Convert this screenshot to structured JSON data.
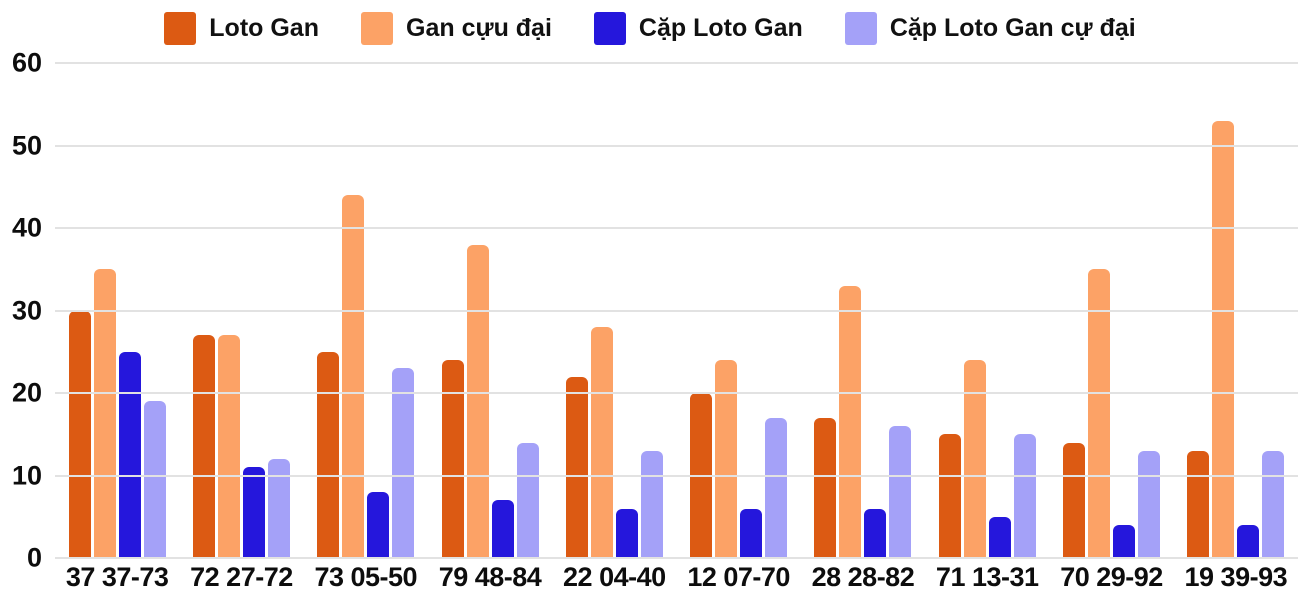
{
  "chart_data": {
    "type": "bar",
    "title": "",
    "xlabel": "",
    "ylabel": "",
    "categories": [
      "37 37-73",
      "72 27-72",
      "73 05-50",
      "79 48-84",
      "22 04-40",
      "12 07-70",
      "28 28-82",
      "71 13-31",
      "70 29-92",
      "19 39-93"
    ],
    "series": [
      {
        "name": "Loto Gan",
        "color": "#dc5a13",
        "values": [
          30,
          27,
          25,
          24,
          22,
          20,
          17,
          15,
          14,
          13
        ]
      },
      {
        "name": "Gan cựu đại",
        "color": "#fca266",
        "values": [
          35,
          27,
          44,
          38,
          28,
          24,
          33,
          24,
          35,
          53
        ]
      },
      {
        "name": "Cặp Loto Gan",
        "color": "#2517dc",
        "values": [
          25,
          11,
          8,
          7,
          6,
          6,
          6,
          5,
          4,
          4
        ]
      },
      {
        "name": "Cặp Loto Gan cự đại",
        "color": "#a4a1f8",
        "values": [
          19,
          12,
          23,
          14,
          13,
          17,
          16,
          15,
          13,
          13
        ]
      }
    ],
    "ylim": [
      0,
      60
    ],
    "yticks": [
      0,
      10,
      20,
      30,
      40,
      50,
      60
    ],
    "grid": true,
    "legend_position": "top",
    "colors": {
      "gridline": "#e2e2e2",
      "axis_text": "#0d0d0d",
      "background": "#ffffff"
    }
  }
}
